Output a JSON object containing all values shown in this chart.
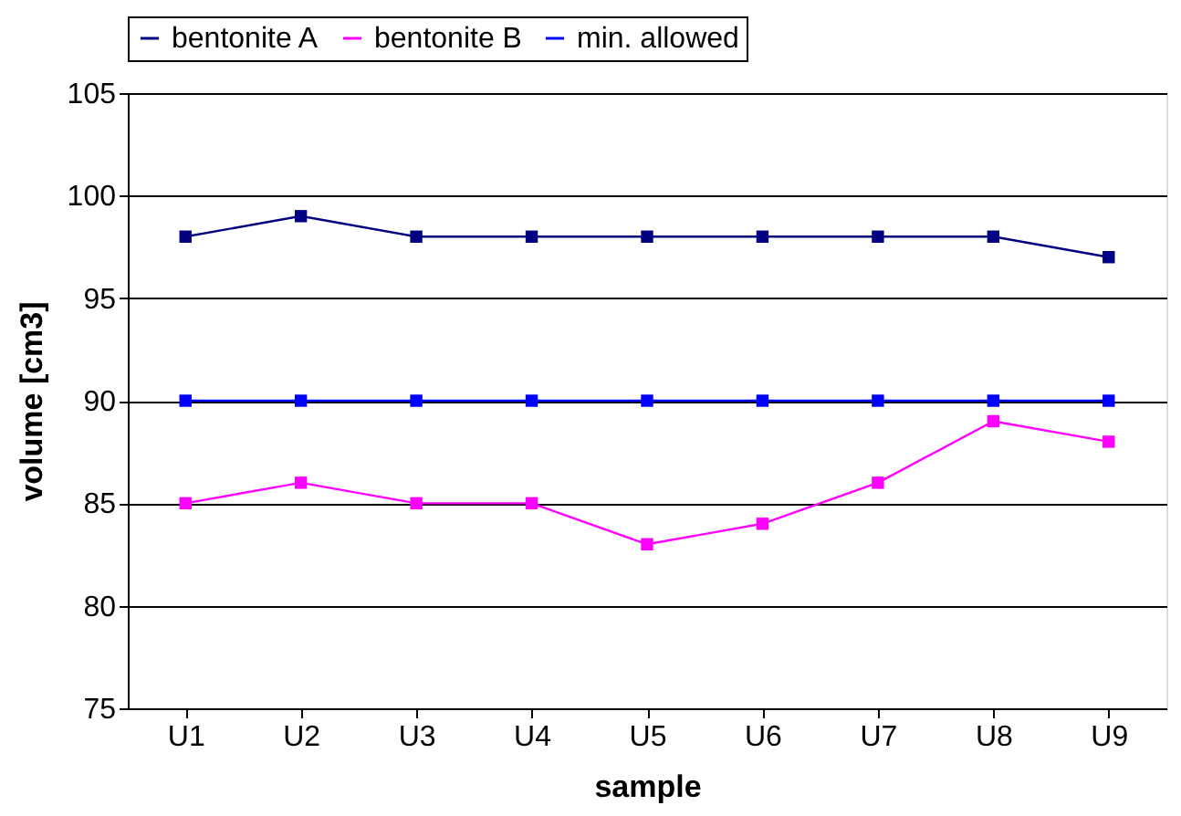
{
  "chart_data": {
    "type": "line",
    "xlabel": "sample",
    "ylabel": "volume  [cm3]",
    "categories": [
      "U1",
      "U2",
      "U3",
      "U4",
      "U5",
      "U6",
      "U7",
      "U8",
      "U9"
    ],
    "series": [
      {
        "name": "bentonite A",
        "color": "#000080",
        "values": [
          98,
          99,
          98,
          98,
          98,
          98,
          98,
          98,
          97
        ]
      },
      {
        "name": "bentonite B",
        "color": "#ff00ff",
        "values": [
          85,
          86,
          85,
          85,
          83,
          84,
          86,
          89,
          88
        ]
      },
      {
        "name": "min. allowed",
        "color": "#0000ff",
        "values": [
          90,
          90,
          90,
          90,
          90,
          90,
          90,
          90,
          90
        ]
      }
    ],
    "ylim": [
      75,
      105
    ],
    "yticks": [
      75,
      80,
      85,
      90,
      95,
      100,
      105
    ],
    "grid": "y",
    "legend": "top",
    "marker": "square",
    "line_style": "solid"
  }
}
